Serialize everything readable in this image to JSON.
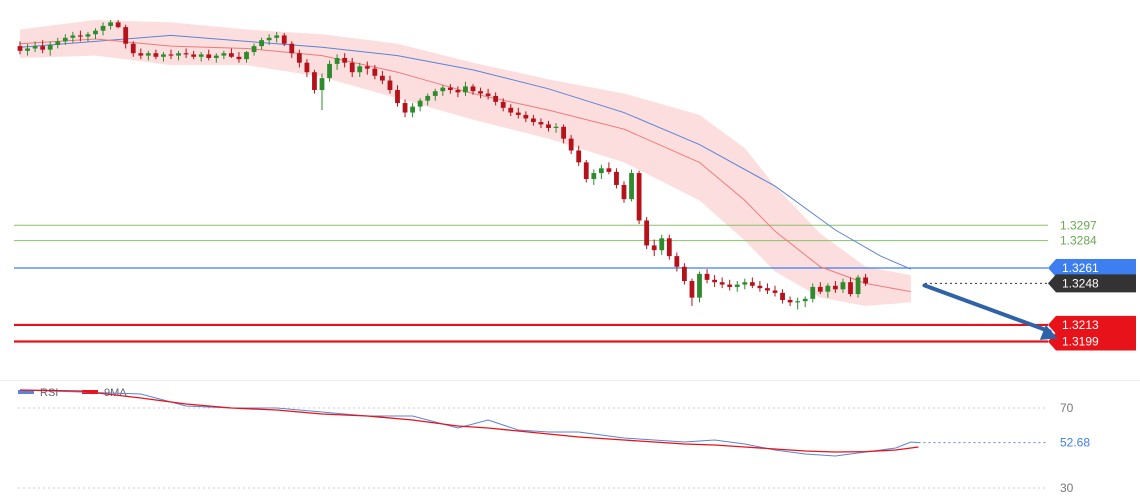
{
  "chart_data": [
    {
      "type": "candlestick",
      "title": "",
      "ylim": [
        1.3175,
        1.347
      ],
      "candles": [
        [
          1.3448,
          1.3452,
          1.3441,
          1.3444
        ],
        [
          1.3444,
          1.345,
          1.344,
          1.3446
        ],
        [
          1.3446,
          1.3452,
          1.3443,
          1.3448
        ],
        [
          1.3448,
          1.3453,
          1.3442,
          1.3445
        ],
        [
          1.3445,
          1.3452,
          1.344,
          1.3449
        ],
        [
          1.3449,
          1.3455,
          1.3446,
          1.3452
        ],
        [
          1.3452,
          1.3458,
          1.3449,
          1.3455
        ],
        [
          1.3455,
          1.346,
          1.3451,
          1.3457
        ],
        [
          1.3457,
          1.3461,
          1.3452,
          1.3456
        ],
        [
          1.3456,
          1.346,
          1.3452,
          1.3458
        ],
        [
          1.3458,
          1.3463,
          1.3454,
          1.3461
        ],
        [
          1.3461,
          1.3468,
          1.3457,
          1.3465
        ],
        [
          1.3465,
          1.347,
          1.3462,
          1.3468
        ],
        [
          1.3468,
          1.347,
          1.3463,
          1.3464
        ],
        [
          1.3464,
          1.3466,
          1.3446,
          1.345
        ],
        [
          1.345,
          1.3452,
          1.3439,
          1.3442
        ],
        [
          1.3442,
          1.3446,
          1.3437,
          1.344
        ],
        [
          1.344,
          1.3444,
          1.3436,
          1.3442
        ],
        [
          1.3442,
          1.3445,
          1.3437,
          1.3439
        ],
        [
          1.3439,
          1.3443,
          1.3435,
          1.3441
        ],
        [
          1.3441,
          1.3445,
          1.3437,
          1.344
        ],
        [
          1.344,
          1.3444,
          1.3436,
          1.3442
        ],
        [
          1.3442,
          1.3446,
          1.3438,
          1.3441
        ],
        [
          1.3441,
          1.3444,
          1.3437,
          1.3439
        ],
        [
          1.3439,
          1.3443,
          1.3435,
          1.3441
        ],
        [
          1.3441,
          1.3445,
          1.3436,
          1.3438
        ],
        [
          1.3438,
          1.3442,
          1.3434,
          1.344
        ],
        [
          1.344,
          1.3444,
          1.3437,
          1.3442
        ],
        [
          1.3442,
          1.3446,
          1.3438,
          1.3439
        ],
        [
          1.3439,
          1.3443,
          1.3434,
          1.3437
        ],
        [
          1.3437,
          1.3444,
          1.3434,
          1.3443
        ],
        [
          1.3443,
          1.345,
          1.344,
          1.3448
        ],
        [
          1.3448,
          1.3455,
          1.3445,
          1.3453
        ],
        [
          1.3453,
          1.3458,
          1.3449,
          1.3455
        ],
        [
          1.3455,
          1.346,
          1.3451,
          1.3457
        ],
        [
          1.3457,
          1.3459,
          1.3448,
          1.345
        ],
        [
          1.345,
          1.3452,
          1.3438,
          1.3442
        ],
        [
          1.3442,
          1.3445,
          1.343,
          1.3434
        ],
        [
          1.3434,
          1.3437,
          1.3422,
          1.3426
        ],
        [
          1.3426,
          1.3428,
          1.3408,
          1.3411
        ],
        [
          1.3411,
          1.3425,
          1.3394,
          1.3421
        ],
        [
          1.3421,
          1.3436,
          1.3418,
          1.3433
        ],
        [
          1.3433,
          1.3441,
          1.3428,
          1.3438
        ],
        [
          1.3438,
          1.3442,
          1.343,
          1.3434
        ],
        [
          1.3434,
          1.3438,
          1.3422,
          1.3426
        ],
        [
          1.3426,
          1.3434,
          1.3422,
          1.3431
        ],
        [
          1.3431,
          1.3435,
          1.3424,
          1.3429
        ],
        [
          1.3429,
          1.3432,
          1.342,
          1.3423
        ],
        [
          1.3423,
          1.3427,
          1.3416,
          1.3419
        ],
        [
          1.3419,
          1.3423,
          1.3408,
          1.3411
        ],
        [
          1.3411,
          1.3415,
          1.3397,
          1.34
        ],
        [
          1.34,
          1.3403,
          1.3388,
          1.3392
        ],
        [
          1.3392,
          1.34,
          1.3388,
          1.3397
        ],
        [
          1.3397,
          1.3404,
          1.3393,
          1.3402
        ],
        [
          1.3402,
          1.3408,
          1.3398,
          1.3406
        ],
        [
          1.3406,
          1.3412,
          1.3402,
          1.341
        ],
        [
          1.341,
          1.3415,
          1.3406,
          1.3413
        ],
        [
          1.3413,
          1.3416,
          1.3408,
          1.3411
        ],
        [
          1.3411,
          1.3414,
          1.3405,
          1.3409
        ],
        [
          1.3409,
          1.3418,
          1.3406,
          1.3414
        ],
        [
          1.3414,
          1.3416,
          1.3407,
          1.341
        ],
        [
          1.341,
          1.3413,
          1.3404,
          1.3408
        ],
        [
          1.3408,
          1.3412,
          1.3403,
          1.3406
        ],
        [
          1.3406,
          1.3409,
          1.3398,
          1.3401
        ],
        [
          1.3401,
          1.3404,
          1.3393,
          1.3396
        ],
        [
          1.3396,
          1.3399,
          1.3389,
          1.3392
        ],
        [
          1.3392,
          1.3396,
          1.3387,
          1.339
        ],
        [
          1.339,
          1.3393,
          1.3384,
          1.3387
        ],
        [
          1.3387,
          1.339,
          1.3381,
          1.3384
        ],
        [
          1.3384,
          1.3387,
          1.3379,
          1.3382
        ],
        [
          1.3382,
          1.3385,
          1.3376,
          1.3379
        ],
        [
          1.3379,
          1.3383,
          1.3375,
          1.338
        ],
        [
          1.338,
          1.3382,
          1.3366,
          1.337
        ],
        [
          1.337,
          1.3373,
          1.3357,
          1.336
        ],
        [
          1.336,
          1.3364,
          1.3347,
          1.335
        ],
        [
          1.335,
          1.3352,
          1.3333,
          1.3336
        ],
        [
          1.3336,
          1.3344,
          1.3331,
          1.3341
        ],
        [
          1.3341,
          1.3348,
          1.3336,
          1.3345
        ],
        [
          1.3345,
          1.335,
          1.334,
          1.3342
        ],
        [
          1.3342,
          1.3345,
          1.3328,
          1.3331
        ],
        [
          1.3331,
          1.3334,
          1.3316,
          1.3319
        ],
        [
          1.3319,
          1.3344,
          1.3317,
          1.3341
        ],
        [
          1.3341,
          1.3343,
          1.3298,
          1.3301
        ],
        [
          1.3301,
          1.3304,
          1.3277,
          1.328
        ],
        [
          1.328,
          1.3285,
          1.3271,
          1.3276
        ],
        [
          1.3276,
          1.3289,
          1.3272,
          1.3286
        ],
        [
          1.3286,
          1.3289,
          1.3268,
          1.3271
        ],
        [
          1.3271,
          1.3274,
          1.3258,
          1.3262
        ],
        [
          1.3262,
          1.3265,
          1.3247,
          1.325
        ],
        [
          1.325,
          1.3252,
          1.3229,
          1.3236
        ],
        [
          1.3236,
          1.3258,
          1.3232,
          1.3256
        ],
        [
          1.3256,
          1.326,
          1.3248,
          1.3251
        ],
        [
          1.3251,
          1.3255,
          1.3245,
          1.3249
        ],
        [
          1.3249,
          1.3253,
          1.3244,
          1.3247
        ],
        [
          1.3247,
          1.3251,
          1.3242,
          1.3245
        ],
        [
          1.3245,
          1.325,
          1.3241,
          1.3247
        ],
        [
          1.3247,
          1.3252,
          1.3243,
          1.3249
        ],
        [
          1.3249,
          1.3253,
          1.3244,
          1.3246
        ],
        [
          1.3246,
          1.325,
          1.3241,
          1.3244
        ],
        [
          1.3244,
          1.3248,
          1.3239,
          1.3242
        ],
        [
          1.3242,
          1.3246,
          1.3237,
          1.324
        ],
        [
          1.324,
          1.3243,
          1.3231,
          1.3234
        ],
        [
          1.3234,
          1.3237,
          1.3229,
          1.3232
        ],
        [
          1.3232,
          1.3236,
          1.3226,
          1.3233
        ],
        [
          1.3233,
          1.3237,
          1.3228,
          1.3235
        ],
        [
          1.3235,
          1.3248,
          1.3232,
          1.3245
        ],
        [
          1.3245,
          1.3249,
          1.3239,
          1.3241
        ],
        [
          1.3241,
          1.3248,
          1.3236,
          1.3246
        ],
        [
          1.3246,
          1.325,
          1.324,
          1.3243
        ],
        [
          1.3243,
          1.3252,
          1.324,
          1.3249
        ],
        [
          1.3249,
          1.3253,
          1.3237,
          1.3239
        ],
        [
          1.3239,
          1.3255,
          1.3236,
          1.3253
        ],
        [
          1.3253,
          1.3256,
          1.3246,
          1.3248
        ]
      ],
      "moving_averages": [
        {
          "color": "#5b84d6",
          "values": [
            [
              0,
              1.3447
            ],
            [
              10,
              1.3452
            ],
            [
              20,
              1.3457
            ],
            [
              30,
              1.3452
            ],
            [
              40,
              1.3447
            ],
            [
              50,
              1.344
            ],
            [
              60,
              1.3428
            ],
            [
              70,
              1.3412
            ],
            [
              80,
              1.3392
            ],
            [
              90,
              1.3365
            ],
            [
              100,
              1.333
            ],
            [
              108,
              1.3293
            ],
            [
              114,
              1.3271
            ],
            [
              118,
              1.326
            ]
          ]
        },
        {
          "color": "#f07a7a",
          "values": [
            [
              0,
              1.345
            ],
            [
              10,
              1.3454
            ],
            [
              20,
              1.3448
            ],
            [
              30,
              1.3446
            ],
            [
              40,
              1.344
            ],
            [
              50,
              1.3426
            ],
            [
              60,
              1.3408
            ],
            [
              70,
              1.3394
            ],
            [
              80,
              1.3378
            ],
            [
              90,
              1.335
            ],
            [
              96,
              1.3318
            ],
            [
              100,
              1.3292
            ],
            [
              106,
              1.3262
            ],
            [
              112,
              1.3248
            ],
            [
              118,
              1.3241
            ]
          ]
        }
      ],
      "band": {
        "color": "#f5a0a0",
        "upper": [
          [
            0,
            1.3462
          ],
          [
            10,
            1.347
          ],
          [
            20,
            1.3468
          ],
          [
            30,
            1.3462
          ],
          [
            40,
            1.3458
          ],
          [
            50,
            1.345
          ],
          [
            60,
            1.3434
          ],
          [
            70,
            1.342
          ],
          [
            80,
            1.3408
          ],
          [
            90,
            1.339
          ],
          [
            96,
            1.3362
          ],
          [
            100,
            1.333
          ],
          [
            106,
            1.329
          ],
          [
            112,
            1.3262
          ],
          [
            118,
            1.3255
          ]
        ],
        "lower": [
          [
            0,
            1.3438
          ],
          [
            10,
            1.344
          ],
          [
            20,
            1.3432
          ],
          [
            30,
            1.3432
          ],
          [
            40,
            1.3422
          ],
          [
            50,
            1.3404
          ],
          [
            60,
            1.3386
          ],
          [
            70,
            1.337
          ],
          [
            80,
            1.335
          ],
          [
            90,
            1.3318
          ],
          [
            96,
            1.3284
          ],
          [
            100,
            1.3258
          ],
          [
            106,
            1.3236
          ],
          [
            112,
            1.3229
          ],
          [
            118,
            1.3232
          ]
        ]
      },
      "horizontal_levels": [
        {
          "value": 1.3297,
          "label": "1.3297",
          "kind": "resistance-minor",
          "color": "#8cc06a"
        },
        {
          "value": 1.3284,
          "label": "1.3284",
          "kind": "resistance-minor",
          "color": "#8cc06a"
        },
        {
          "value": 1.3261,
          "label": "1.3261",
          "kind": "resistance",
          "color": "#3d7ff0"
        },
        {
          "value": 1.3248,
          "label": "1.3248",
          "kind": "current-price",
          "color": "#333333"
        },
        {
          "value": 1.3213,
          "label": "1.3213",
          "kind": "support",
          "color": "#e8131a"
        },
        {
          "value": 1.3199,
          "label": "1.3199",
          "kind": "support",
          "color": "#e8131a"
        }
      ],
      "forecast_arrow": {
        "from": [
          119,
          1.3248
        ],
        "to": [
          134,
          1.32
        ],
        "color": "#2f62a6"
      }
    },
    {
      "type": "line",
      "title": "",
      "legend": [
        {
          "name": "RSI",
          "color": "#5b84d6"
        },
        {
          "name": "9MA",
          "color": "#e8131a"
        }
      ],
      "legend_position": "top-left",
      "ylim": [
        24,
        84
      ],
      "y_ticks": [
        70,
        30
      ],
      "current_value_label": "52.68",
      "series": [
        {
          "name": "RSI",
          "values": [
            [
              0,
              79
            ],
            [
              8,
              78
            ],
            [
              16,
              77
            ],
            [
              22,
              71
            ],
            [
              28,
              70
            ],
            [
              34,
              70
            ],
            [
              40,
              68
            ],
            [
              46,
              66
            ],
            [
              52,
              66
            ],
            [
              58,
              60
            ],
            [
              62,
              64
            ],
            [
              66,
              59
            ],
            [
              70,
              58
            ],
            [
              74,
              58
            ],
            [
              80,
              55
            ],
            [
              84,
              54
            ],
            [
              88,
              53
            ],
            [
              92,
              54
            ],
            [
              96,
              52
            ],
            [
              100,
              49
            ],
            [
              104,
              47
            ],
            [
              108,
              46
            ],
            [
              112,
              48
            ],
            [
              116,
              50
            ],
            [
              118,
              53
            ],
            [
              119,
              52.68
            ]
          ]
        },
        {
          "name": "9MA",
          "values": [
            [
              0,
              79
            ],
            [
              8,
              78.5
            ],
            [
              16,
              75
            ],
            [
              22,
              72
            ],
            [
              28,
              70
            ],
            [
              34,
              69
            ],
            [
              40,
              67
            ],
            [
              46,
              66
            ],
            [
              52,
              64
            ],
            [
              58,
              61
            ],
            [
              62,
              60
            ],
            [
              66,
              58.5
            ],
            [
              70,
              57
            ],
            [
              74,
              55.5
            ],
            [
              80,
              54
            ],
            [
              84,
              53
            ],
            [
              88,
              52
            ],
            [
              92,
              51.5
            ],
            [
              96,
              50.5
            ],
            [
              100,
              49.5
            ],
            [
              104,
              48.5
            ],
            [
              108,
              48
            ],
            [
              112,
              48.2
            ],
            [
              116,
              49
            ],
            [
              119,
              50.5
            ]
          ]
        }
      ]
    }
  ]
}
